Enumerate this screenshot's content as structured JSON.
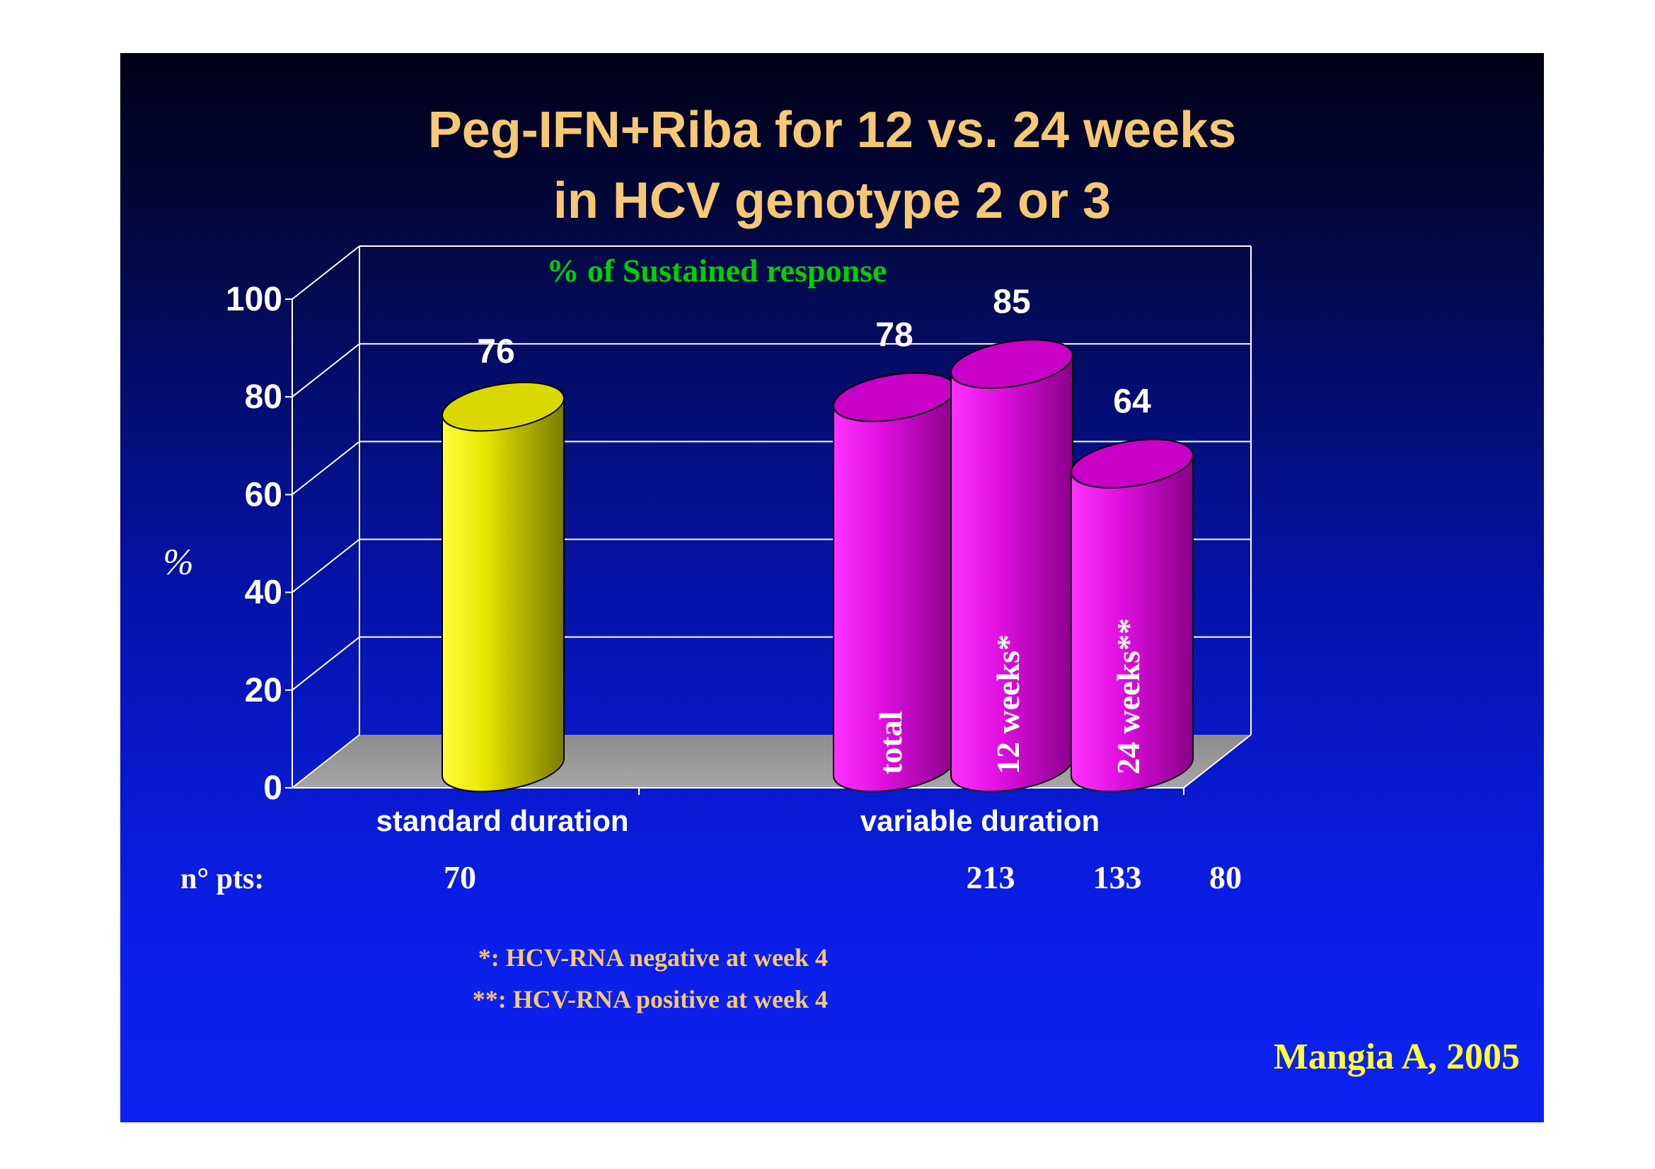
{
  "slide": {
    "title_line1": "Peg-IFN+Riba for 12 vs. 24 weeks",
    "title_line2": "in HCV genotype 2 or 3",
    "citation": "Mangia A, 2005",
    "footnote1": "*: HCV-RNA negative at week 4",
    "footnote2": "**: HCV-RNA positive at week 4",
    "pts_label": "n° pts:",
    "colors": {
      "title": "#f7c873",
      "subtitle": "#00d000",
      "footnote": "#f7c873",
      "citation": "#ffff33",
      "background": "#0613a8"
    }
  },
  "chart_data": {
    "type": "bar",
    "title": "% of Sustained response",
    "ylabel": "%",
    "xlabel": "",
    "ylim": [
      0,
      100
    ],
    "yticks": [
      "0",
      "20",
      "40",
      "60",
      "80",
      "100"
    ],
    "grid": true,
    "categories": [
      "standard duration",
      "variable duration"
    ],
    "bars": [
      {
        "group": "standard duration",
        "label": "",
        "value": 76,
        "value_label": "76",
        "n_pts": "70",
        "color": "#e8e800"
      },
      {
        "group": "variable duration",
        "label": "total",
        "value": 78,
        "value_label": "78",
        "n_pts": "213",
        "color": "#e010e0"
      },
      {
        "group": "variable duration",
        "label": "12 weeks*",
        "value": 85,
        "value_label": "85",
        "n_pts": "133",
        "color": "#e010e0"
      },
      {
        "group": "variable duration",
        "label": "24 weeks**",
        "value": 64,
        "value_label": "64",
        "n_pts": "80",
        "color": "#e010e0"
      }
    ]
  }
}
